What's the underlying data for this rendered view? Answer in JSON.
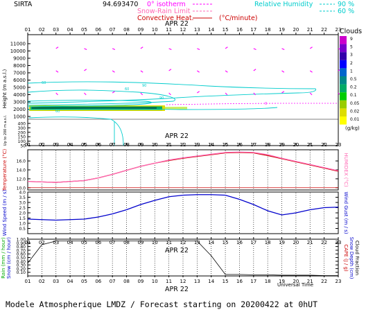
{
  "header": {
    "station": "SIRTA",
    "coords": "94.693470",
    "legend_isotherm": "0° isotherm",
    "legend_snow": "Snow-Rain Limit",
    "legend_convective": "Convective Heat.",
    "legend_convective_unit": "(°C/minute)",
    "legend_rh": "Relative Humidity",
    "rh_90": "90 %",
    "rh_60": "60 %"
  },
  "hours": [
    "01",
    "02",
    "03",
    "04",
    "05",
    "06",
    "07",
    "08",
    "09",
    "10",
    "11",
    "12",
    "13",
    "14",
    "15",
    "16",
    "17",
    "18",
    "19",
    "20",
    "21",
    "22",
    "23"
  ],
  "date_label": "APR 22",
  "clouds": {
    "title": "Clouds",
    "unit": "(g/kg)",
    "scale_labels": [
      "9",
      "5",
      "3",
      "2",
      "1",
      "0.5",
      "0.2",
      "0.1",
      "0.05",
      "0.02",
      "0.01"
    ],
    "scale_colors": [
      "#cc00cc",
      "#7700cc",
      "#3300aa",
      "#0000ff",
      "#0066cc",
      "#008888",
      "#00aa66",
      "#00cc00",
      "#99cc00",
      "#dddd00",
      "#ffff00"
    ]
  },
  "panel_labels": {
    "height": "Height (m a.s.l.)",
    "height_sub": "Up to 200 m a.s.l.",
    "temperature": "Temperature (°C)",
    "humidex": "HUMIDEX (°C)",
    "wind_speed": "Wind Speed (m / s)",
    "wind_gust": "Wind Gust (m / s)",
    "rain": "Rain (mm / hour)",
    "snow": "Snow (cm / hour)",
    "cape": "CAPE (J / g)",
    "snow_depth": "Snow Depth (cm)",
    "cloud_fraction": "Cloud Fraction",
    "universal_time": "Universal Time"
  },
  "footer": "Modele Atmospherique LMDZ / Forecast starting on 20200422 at 0hUT",
  "chart_data": [
    {
      "type": "heatmap",
      "name": "height-panel",
      "y_ticks_upper": [
        "11000",
        "10000",
        "9000",
        "8000",
        "7000",
        "6000",
        "5000",
        "4000",
        "3000",
        "2000",
        "1000"
      ],
      "y_ticks_lower": [
        "400",
        "300",
        "200",
        "150",
        "100",
        "50"
      ],
      "rh_contour_labels": [
        "60",
        "60",
        "90",
        "90",
        "60"
      ],
      "isotherm_label": "0"
    },
    {
      "type": "line",
      "name": "temperature",
      "x": [
        1,
        2,
        3,
        4,
        5,
        6,
        7,
        8,
        9,
        10,
        11,
        12,
        13,
        14,
        15,
        16,
        17,
        18,
        19,
        20,
        21,
        22,
        23
      ],
      "y_ticks": [
        "16.0",
        "14.0",
        "12.0",
        "10.0"
      ],
      "ylim": [
        9.5,
        18.5
      ],
      "series": [
        {
          "name": "Temperature",
          "color": "#cc0000",
          "values": [
            11.4,
            11.3,
            11.2,
            11.4,
            11.6,
            12.2,
            13.0,
            13.9,
            14.8,
            15.5,
            16.1,
            16.6,
            17.0,
            17.4,
            17.8,
            17.9,
            17.8,
            17.2,
            16.5,
            15.8,
            15.1,
            14.4,
            13.7
          ]
        },
        {
          "name": "HUMIDEX",
          "color": "#ff69b4",
          "values": [
            11.4,
            11.3,
            11.2,
            11.4,
            11.6,
            12.2,
            13.0,
            13.9,
            14.8,
            15.5,
            16.2,
            16.7,
            17.1,
            17.5,
            17.9,
            18.0,
            17.9,
            17.4,
            16.6,
            15.9,
            15.2,
            14.5,
            13.8
          ]
        }
      ]
    },
    {
      "type": "line",
      "name": "wind",
      "x": [
        1,
        2,
        3,
        4,
        5,
        6,
        7,
        8,
        9,
        10,
        11,
        12,
        13,
        14,
        15,
        16,
        17,
        18,
        19,
        20,
        21,
        22,
        23
      ],
      "y_ticks": [
        "4.0",
        "3.5",
        "3.0",
        "2.5",
        "2.0",
        "1.5",
        "1.0",
        "0.5"
      ],
      "ylim": [
        0,
        4.0
      ],
      "series": [
        {
          "name": "Wind Speed",
          "color": "#0000cc",
          "values": [
            1.4,
            1.35,
            1.3,
            1.35,
            1.4,
            1.6,
            1.9,
            2.3,
            2.8,
            3.2,
            3.55,
            3.7,
            3.75,
            3.75,
            3.7,
            3.3,
            2.8,
            2.2,
            1.8,
            2.0,
            2.3,
            2.5,
            2.55
          ]
        }
      ]
    },
    {
      "type": "line",
      "name": "cloud-fraction",
      "x": [
        1,
        2,
        3,
        4,
        5,
        6,
        7,
        8,
        9,
        10,
        11,
        12,
        13,
        14,
        15,
        16,
        17,
        18,
        19,
        20,
        21,
        22,
        23
      ],
      "y_ticks": [
        "1.00",
        "0.90",
        "0.80",
        "0.70",
        "0.60",
        "0.50",
        "0.40",
        "0.30",
        "0.20",
        "0.10"
      ],
      "ylim": [
        0,
        1.0
      ],
      "series": [
        {
          "name": "Cloud Fraction",
          "color": "#000000",
          "values": [
            0.35,
            0.85,
            0.95,
            0.95,
            0.95,
            0.95,
            0.95,
            0.95,
            0.95,
            0.95,
            0.95,
            0.95,
            0.95,
            0.55,
            0.04,
            0.04,
            0.03,
            0.03,
            0.02,
            0.02,
            0.02,
            0.01,
            0.01
          ]
        }
      ]
    }
  ]
}
